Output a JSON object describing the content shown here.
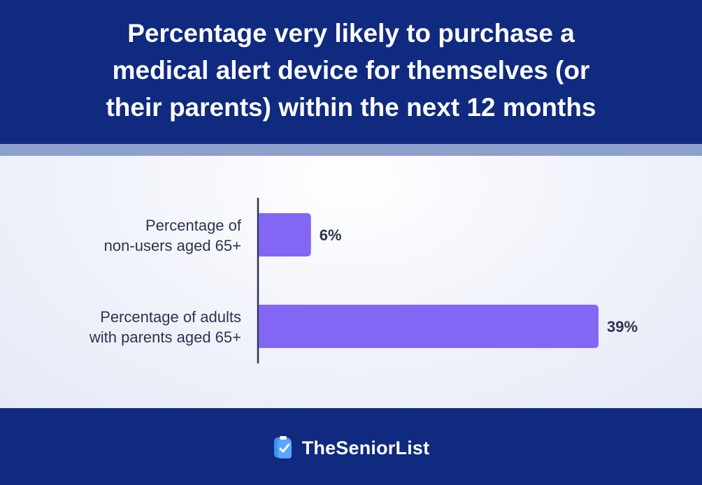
{
  "header": {
    "title": "Percentage very likely to purchase a\nmedical alert device for themselves (or\ntheir parents) within the next 12 months"
  },
  "chart_data": {
    "type": "bar",
    "orientation": "horizontal",
    "title": "Percentage very likely to purchase a medical alert device for themselves (or their parents) within the next 12 months",
    "categories": [
      [
        "Percentage of",
        "non-users aged 65+"
      ],
      [
        "Percentage of adults",
        "with parents aged 65+"
      ]
    ],
    "values": [
      6,
      39
    ],
    "value_labels": [
      "6%",
      "39%"
    ],
    "xlabel": "",
    "ylabel": "",
    "xlim": [
      0,
      40
    ],
    "grid": false,
    "legend": "none",
    "bar_color": "#8466f5"
  },
  "footer": {
    "brand": "TheSeniorList",
    "logo_icon": "checklist-icon",
    "logo_color": "#3f8ff0"
  },
  "colors": {
    "header_bg": "#0f2a7e",
    "stripe": "#8d9fcb",
    "text_dark": "#2b3450",
    "bar": "#8466f5"
  }
}
